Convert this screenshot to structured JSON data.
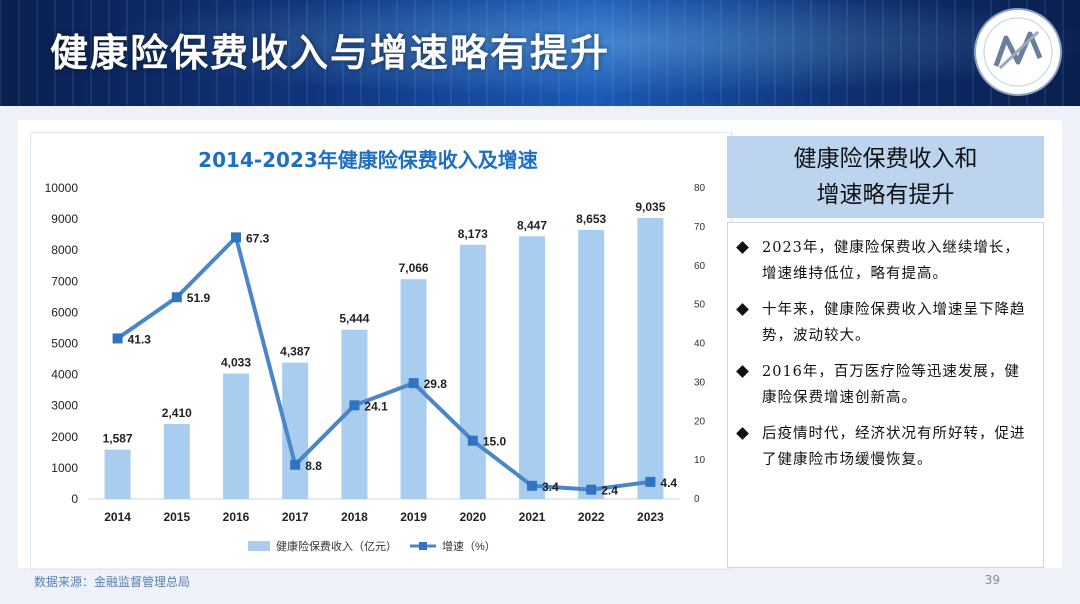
{
  "header": {
    "title": "健康险保费收入与增速略有提升"
  },
  "chart_data": {
    "type": "bar",
    "title": "2014-2023年健康险保费收入及增速",
    "categories": [
      "2014",
      "2015",
      "2016",
      "2017",
      "2018",
      "2019",
      "2020",
      "2021",
      "2022",
      "2023"
    ],
    "series": [
      {
        "name": "健康险保费收入（亿元）",
        "type": "bar",
        "axis": "left",
        "values": [
          1587,
          2410,
          4033,
          4387,
          5444,
          7066,
          8173,
          8447,
          8653,
          9035
        ],
        "labels": [
          "1,587",
          "2,410",
          "4,033",
          "4,387",
          "5,444",
          "7,066",
          "8,173",
          "8,447",
          "8,653",
          "9,035"
        ],
        "color": "#a9cdee"
      },
      {
        "name": "增速（%）",
        "type": "line",
        "axis": "right",
        "values": [
          41.3,
          51.9,
          67.3,
          8.8,
          24.1,
          29.8,
          15.0,
          3.4,
          2.4,
          4.4
        ],
        "labels": [
          "41.3",
          "51.9",
          "67.3",
          "8.8",
          "24.1",
          "29.8",
          "15.0",
          "3.4",
          "2.4",
          "4.4"
        ],
        "color": "#4a86c8"
      }
    ],
    "y_left": {
      "min": 0,
      "max": 10000,
      "ticks": [
        "0",
        "1000",
        "2000",
        "3000",
        "4000",
        "5000",
        "6000",
        "7000",
        "8000",
        "9000",
        "10000"
      ]
    },
    "y_right": {
      "min": 0,
      "max": 80,
      "ticks": [
        "0",
        "10",
        "20",
        "30",
        "40",
        "50",
        "60",
        "70",
        "80"
      ]
    },
    "legend_position": "bottom"
  },
  "side_panel": {
    "heading_line1": "健康险保费收入和",
    "heading_line2": "增速略有提升",
    "bullets": [
      "2023年，健康险保费收入继续增长，增速维持低位，略有提高。",
      "十年来，健康险保费收入增速呈下降趋势，波动较大。",
      "2016年，百万医疗险等迅速发展，健康险保费增速创新高。",
      "后疫情时代，经济状况有所好转，促进了健康险市场缓慢恢复。"
    ]
  },
  "footer": {
    "source": "数据来源：金融监督管理总局",
    "page_number": "39"
  }
}
